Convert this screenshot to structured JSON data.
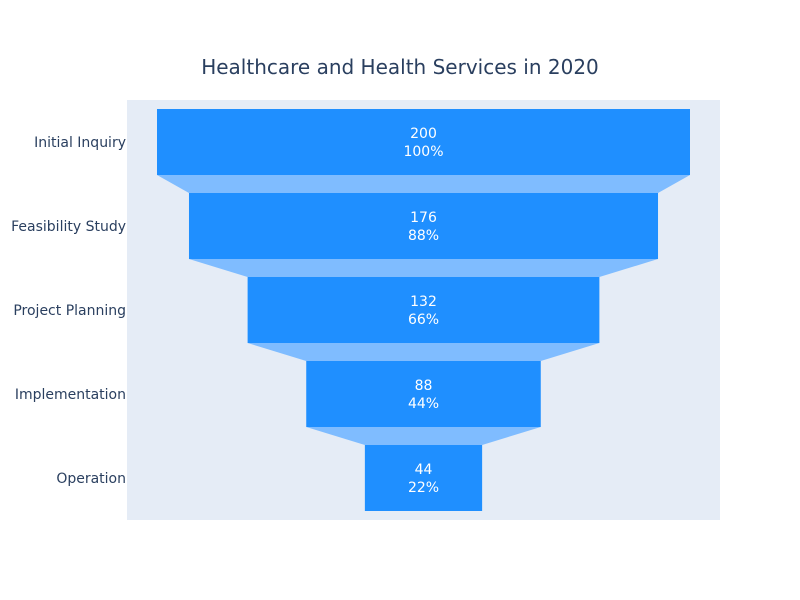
{
  "chart_data": {
    "type": "funnel",
    "title": "Healthcare and Health Services in 2020",
    "categories": [
      "Initial Inquiry",
      "Feasibility Study",
      "Project Planning",
      "Implementation",
      "Operation"
    ],
    "values": [
      200,
      176,
      132,
      88,
      44
    ],
    "percent_labels": [
      "100%",
      "88%",
      "66%",
      "44%",
      "22%"
    ],
    "colors": {
      "bar": "#1f8fff",
      "connector": "#7fbcff",
      "plot_bg": "#e5ecf6",
      "text": "#2a3f5f",
      "bar_text": "#ffffff"
    },
    "grid": false,
    "legend": "none"
  }
}
